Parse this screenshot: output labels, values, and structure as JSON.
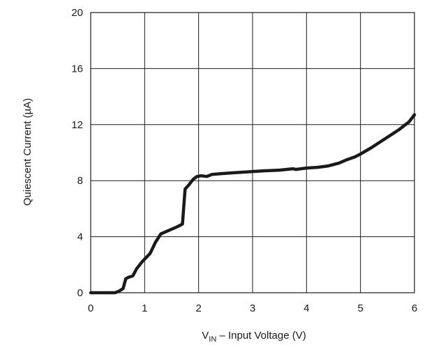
{
  "chart_data": {
    "type": "line",
    "title": "",
    "xlabel": {
      "main": "V",
      "subscript": "IN",
      "rest": " – Input Voltage (V)"
    },
    "ylabel": "Quiescent Current (µA)",
    "xlim": [
      0,
      6
    ],
    "ylim": [
      0,
      20
    ],
    "xticks": [
      0,
      1,
      2,
      3,
      4,
      5,
      6
    ],
    "yticks": [
      0,
      4,
      8,
      12,
      16,
      20
    ],
    "xtick_labels": [
      "0",
      "1",
      "2",
      "3",
      "4",
      "5",
      "6"
    ],
    "ytick_labels": [
      "0",
      "4",
      "8",
      "12",
      "16",
      "20"
    ],
    "grid": true,
    "series_color": "#1a1a1a",
    "series": [
      {
        "x": [
          0,
          0.3,
          0.45,
          0.52,
          0.6,
          0.65,
          0.7,
          0.78,
          0.85,
          0.95,
          1.1,
          1.2,
          1.3,
          1.45,
          1.6,
          1.7,
          1.75,
          1.82,
          1.9,
          1.97,
          2.05,
          2.15,
          2.25,
          2.4,
          2.6,
          2.8,
          3.0,
          3.2,
          3.5,
          3.75,
          3.8,
          3.9,
          4.0,
          4.2,
          4.4,
          4.6,
          4.75,
          4.9,
          5.0,
          5.2,
          5.3,
          5.5,
          5.7,
          5.9,
          6.0
        ],
        "y": [
          0,
          0,
          0,
          0.1,
          0.3,
          1.0,
          1.1,
          1.2,
          1.7,
          2.2,
          2.8,
          3.6,
          4.2,
          4.45,
          4.7,
          4.9,
          7.4,
          7.7,
          8.1,
          8.3,
          8.35,
          8.3,
          8.45,
          8.5,
          8.55,
          8.6,
          8.65,
          8.7,
          8.75,
          8.85,
          8.8,
          8.85,
          8.9,
          8.95,
          9.05,
          9.25,
          9.5,
          9.7,
          9.9,
          10.35,
          10.6,
          11.1,
          11.6,
          12.2,
          12.7
        ]
      }
    ]
  }
}
